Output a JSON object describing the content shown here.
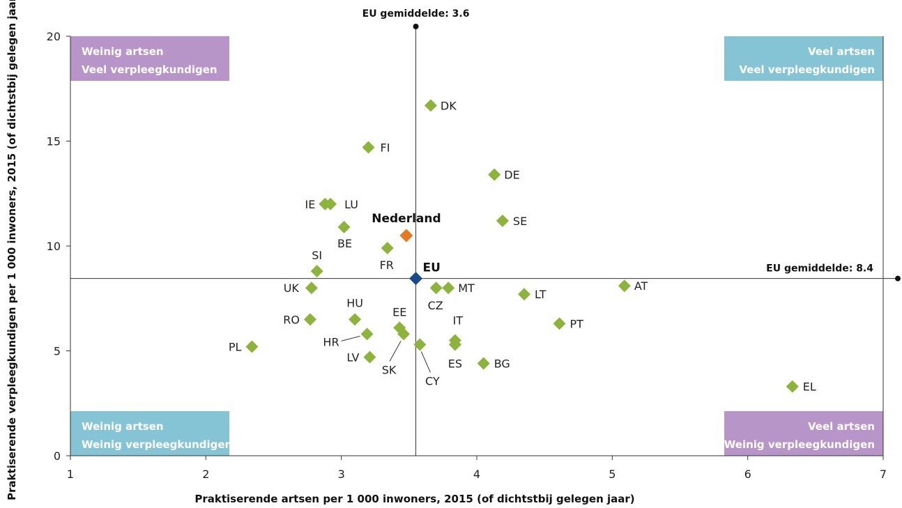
{
  "chart_data": {
    "type": "scatter",
    "xlabel": "Praktiserende artsen per 1 000 inwoners, 2015 (of dichtstbij gelegen jaar)",
    "ylabel": "Praktiserende verpleegkundigen per 1 000 inwoners, 2015 (of dichtstbij gelegen jaar)",
    "xlim": [
      1,
      7
    ],
    "ylim": [
      0,
      20
    ],
    "xticks": [
      "1",
      "2",
      "3",
      "4",
      "5",
      "6",
      "7"
    ],
    "yticks": [
      "0",
      "5",
      "10",
      "15",
      "20"
    ],
    "grid": false,
    "colors": {
      "country": "#8cb33a",
      "netherlands": "#e87722",
      "eu": "#1a4a8a",
      "quad_purple": "#b795c8",
      "quad_blue": "#85c4d4"
    },
    "averages": {
      "x": {
        "value": 3.55,
        "label": "EU gemiddelde: 3.6"
      },
      "y": {
        "value": 8.45,
        "label": "EU gemiddelde: 8.4"
      }
    },
    "quadrants": [
      {
        "position": "top-left",
        "line1": "Weinig artsen",
        "line2": "Veel verpleegkundigen",
        "color": "#b795c8"
      },
      {
        "position": "top-right",
        "line1": "Veel artsen",
        "line2": "Veel verpleegkundigen",
        "color": "#85c4d4"
      },
      {
        "position": "bottom-left",
        "line1": "Weinig artsen",
        "line2": "Weinig verpleegkundigen",
        "color": "#85c4d4"
      },
      {
        "position": "bottom-right",
        "line1": "Veel artsen",
        "line2": "Weinig verpleegkundigen",
        "color": "#b795c8"
      }
    ],
    "points": [
      {
        "label": "DK",
        "x": 3.66,
        "y": 16.7,
        "group": "country"
      },
      {
        "label": "FI",
        "x": 3.2,
        "y": 14.7,
        "group": "country"
      },
      {
        "label": "DE",
        "x": 4.13,
        "y": 13.4,
        "group": "country"
      },
      {
        "label": "IE",
        "x": 2.88,
        "y": 12.0,
        "group": "country"
      },
      {
        "label": "LU",
        "x": 2.92,
        "y": 12.0,
        "group": "country"
      },
      {
        "label": "SE",
        "x": 4.19,
        "y": 11.2,
        "group": "country"
      },
      {
        "label": "BE",
        "x": 3.02,
        "y": 10.9,
        "group": "country"
      },
      {
        "label": "Nederland",
        "x": 3.48,
        "y": 10.5,
        "group": "netherlands"
      },
      {
        "label": "FR",
        "x": 3.34,
        "y": 9.9,
        "group": "country"
      },
      {
        "label": "SI",
        "x": 2.82,
        "y": 8.8,
        "group": "country"
      },
      {
        "label": "EU",
        "x": 3.55,
        "y": 8.45,
        "group": "eu"
      },
      {
        "label": "UK",
        "x": 2.78,
        "y": 8.0,
        "group": "country"
      },
      {
        "label": "CZ",
        "x": 3.7,
        "y": 8.0,
        "group": "country"
      },
      {
        "label": "MT",
        "x": 3.79,
        "y": 8.0,
        "group": "country"
      },
      {
        "label": "AT",
        "x": 5.09,
        "y": 8.1,
        "group": "country"
      },
      {
        "label": "LT",
        "x": 4.35,
        "y": 7.7,
        "group": "country"
      },
      {
        "label": "HU",
        "x": 3.1,
        "y": 6.5,
        "group": "country"
      },
      {
        "label": "RO",
        "x": 2.77,
        "y": 6.5,
        "group": "country"
      },
      {
        "label": "PT",
        "x": 4.61,
        "y": 6.3,
        "group": "country"
      },
      {
        "label": "EE",
        "x": 3.43,
        "y": 6.1,
        "group": "country"
      },
      {
        "label": "HR",
        "x": 3.19,
        "y": 5.8,
        "group": "country"
      },
      {
        "label": "SK",
        "x": 3.46,
        "y": 5.8,
        "group": "country"
      },
      {
        "label": "IT",
        "x": 3.84,
        "y": 5.5,
        "group": "country"
      },
      {
        "label": "ES",
        "x": 3.84,
        "y": 5.3,
        "group": "country"
      },
      {
        "label": "CY",
        "x": 3.58,
        "y": 5.3,
        "group": "country"
      },
      {
        "label": "PL",
        "x": 2.34,
        "y": 5.2,
        "group": "country"
      },
      {
        "label": "LV",
        "x": 3.21,
        "y": 4.7,
        "group": "country"
      },
      {
        "label": "BG",
        "x": 4.05,
        "y": 4.4,
        "group": "country"
      },
      {
        "label": "EL",
        "x": 6.33,
        "y": 3.3,
        "group": "country"
      }
    ]
  }
}
